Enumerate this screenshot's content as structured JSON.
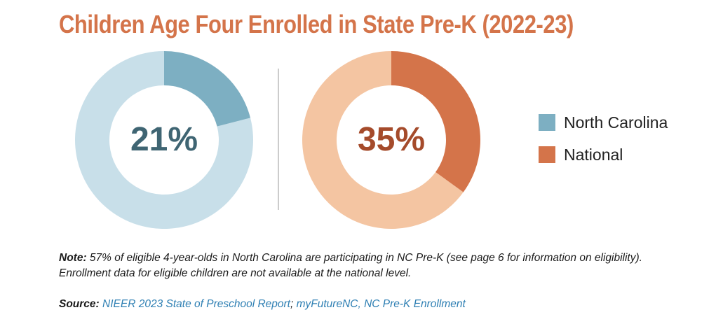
{
  "title": "Children Age Four Enrolled in State Pre-K (2022-23)",
  "colors": {
    "title": "#d4744a",
    "nc_value": "#7dafc2",
    "nc_remainder": "#c8dfe9",
    "nc_label": "#3f6573",
    "national_value": "#d4744a",
    "national_remainder": "#f4c5a2",
    "national_label": "#a54b2b",
    "divider": "#cccccc",
    "source_link": "#2e7fb3"
  },
  "chart_data": [
    {
      "type": "pie",
      "series": [
        {
          "name": "North Carolina",
          "values": [
            21,
            79
          ]
        }
      ],
      "label": "21%"
    },
    {
      "type": "pie",
      "series": [
        {
          "name": "National",
          "values": [
            35,
            65
          ]
        }
      ],
      "label": "35%"
    }
  ],
  "legend": {
    "items": [
      {
        "label": "North Carolina",
        "color": "#7dafc2"
      },
      {
        "label": "National",
        "color": "#d4744a"
      }
    ]
  },
  "note": {
    "lead": "Note:",
    "text": " 57% of eligible 4-year-olds in North Carolina are participating in NC Pre-K (see page 6 for information on eligibility). Enrollment data for eligible children are not available at the national level."
  },
  "source": {
    "lead": "Source:",
    "link1": "NIEER 2023 State of Preschool Report",
    "sep": ";",
    "link2": "myFutureNC, NC Pre-K Enrollment"
  }
}
